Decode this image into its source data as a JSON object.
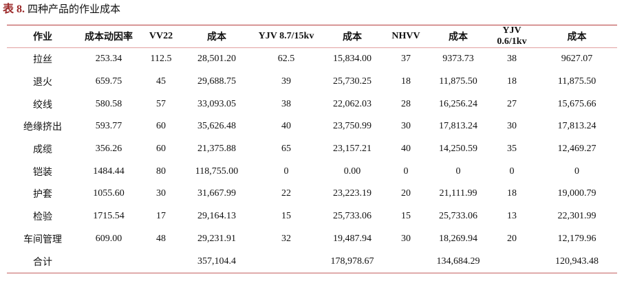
{
  "title": {
    "number": "表 8.",
    "text": "四种产品的作业成本"
  },
  "headers": [
    "作业",
    "成本动因率",
    "VV22",
    "成本",
    "YJV 8.7/15kv",
    "成本",
    "NHVV",
    "成本",
    "YJV 0.6/1kv",
    "成本"
  ],
  "rows": [
    [
      "拉丝",
      "253.34",
      "112.5",
      "28,501.20",
      "62.5",
      "15,834.00",
      "37",
      "9373.73",
      "38",
      "9627.07"
    ],
    [
      "退火",
      "659.75",
      "45",
      "29,688.75",
      "39",
      "25,730.25",
      "18",
      "11,875.50",
      "18",
      "11,875.50"
    ],
    [
      "绞线",
      "580.58",
      "57",
      "33,093.05",
      "38",
      "22,062.03",
      "28",
      "16,256.24",
      "27",
      "15,675.66"
    ],
    [
      "绝缘挤出",
      "593.77",
      "60",
      "35,626.48",
      "40",
      "23,750.99",
      "30",
      "17,813.24",
      "30",
      "17,813.24"
    ],
    [
      "成缆",
      "356.26",
      "60",
      "21,375.88",
      "65",
      "23,157.21",
      "40",
      "14,250.59",
      "35",
      "12,469.27"
    ],
    [
      "铠装",
      "1484.44",
      "80",
      "118,755.00",
      "0",
      "0.00",
      "0",
      "0",
      "0",
      "0"
    ],
    [
      "护套",
      "1055.60",
      "30",
      "31,667.99",
      "22",
      "23,223.19",
      "20",
      "21,111.99",
      "18",
      "19,000.79"
    ],
    [
      "检验",
      "1715.54",
      "17",
      "29,164.13",
      "15",
      "25,733.06",
      "15",
      "25,733.06",
      "13",
      "22,301.99"
    ],
    [
      "车间管理",
      "609.00",
      "48",
      "29,231.91",
      "32",
      "19,487.94",
      "30",
      "18,269.94",
      "20",
      "12,179.96"
    ],
    [
      "合计",
      "",
      "",
      "357,104.4",
      "",
      "178,978.67",
      "",
      "134,684.29",
      "",
      "120,943.48"
    ]
  ]
}
